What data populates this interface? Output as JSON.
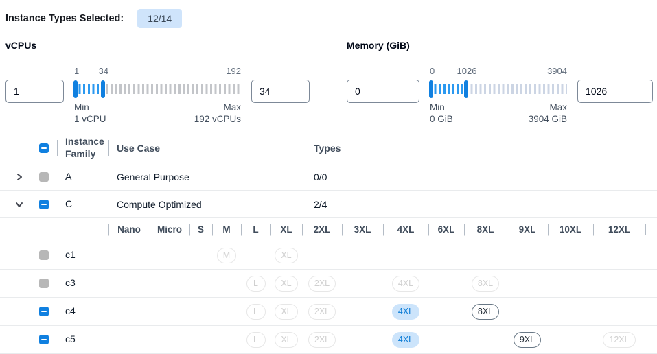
{
  "topbar": {
    "label": "Instance Types Selected:",
    "badge": "12/14"
  },
  "filters": [
    {
      "title": "vCPUs",
      "low_input": "1",
      "high_input": "34",
      "scale": {
        "min_label": "1",
        "current_label": "34",
        "max_label": "192"
      },
      "slider": {
        "min": 1,
        "max": 192,
        "low": 1,
        "high": 34
      },
      "min_caption": "Min",
      "min_detail": "1 vCPU",
      "max_caption": "Max",
      "max_detail": "192 vCPUs"
    },
    {
      "title": "Memory (GiB)",
      "low_input": "0",
      "high_input": "1026",
      "scale": {
        "min_label": "0",
        "current_label": "1026",
        "max_label": "3904"
      },
      "slider": {
        "min": 0,
        "max": 3904,
        "low": 0,
        "high": 1026
      },
      "min_caption": "Min",
      "min_detail": "0 GiB",
      "max_caption": "Max",
      "max_detail": "3904 GiB"
    }
  ],
  "table": {
    "headers": {
      "family": "Instance Family",
      "use_case": "Use Case",
      "types": "Types"
    },
    "select_all_checkbox": "indeterminate",
    "families": [
      {
        "name": "A",
        "use_case": "General Purpose",
        "types": "0/0",
        "expanded": false,
        "checkbox": "disabled"
      },
      {
        "name": "C",
        "use_case": "Compute Optimized",
        "types": "2/4",
        "expanded": true,
        "checkbox": "indeterminate"
      }
    ],
    "sizes": [
      "Nano",
      "Micro",
      "S",
      "M",
      "L",
      "XL",
      "2XL",
      "3XL",
      "4XL",
      "6XL",
      "8XL",
      "9XL",
      "10XL",
      "12XL"
    ],
    "instances": [
      {
        "name": "c1",
        "checkbox": "disabled",
        "pills": [
          {
            "size": "M",
            "state": "disabled"
          },
          {
            "size": "XL",
            "state": "disabled"
          }
        ]
      },
      {
        "name": "c3",
        "checkbox": "disabled",
        "pills": [
          {
            "size": "L",
            "state": "disabled"
          },
          {
            "size": "XL",
            "state": "disabled"
          },
          {
            "size": "2XL",
            "state": "disabled"
          },
          {
            "size": "4XL",
            "state": "disabled"
          },
          {
            "size": "8XL",
            "state": "disabled"
          }
        ]
      },
      {
        "name": "c4",
        "checkbox": "indeterminate",
        "pills": [
          {
            "size": "L",
            "state": "disabled"
          },
          {
            "size": "XL",
            "state": "disabled"
          },
          {
            "size": "2XL",
            "state": "disabled"
          },
          {
            "size": "4XL",
            "state": "selected"
          },
          {
            "size": "8XL",
            "state": "enabled"
          }
        ]
      },
      {
        "name": "c5",
        "checkbox": "indeterminate",
        "pills": [
          {
            "size": "L",
            "state": "disabled"
          },
          {
            "size": "XL",
            "state": "disabled"
          },
          {
            "size": "2XL",
            "state": "disabled"
          },
          {
            "size": "4XL",
            "state": "selected"
          },
          {
            "size": "9XL",
            "state": "enabled"
          },
          {
            "size": "12XL",
            "state": "disabled"
          }
        ]
      }
    ]
  },
  "colors": {
    "accent": "#1080e0",
    "active_tick": "#2b99f0",
    "inactive_tick_vcpu": "#c3c5c9",
    "inactive_tick_memory": "#ccd5e4",
    "badge_bg": "#cfe4fb",
    "selected_pill_bg": "#cce4fb",
    "selected_pill_text": "#0a7bd5"
  }
}
